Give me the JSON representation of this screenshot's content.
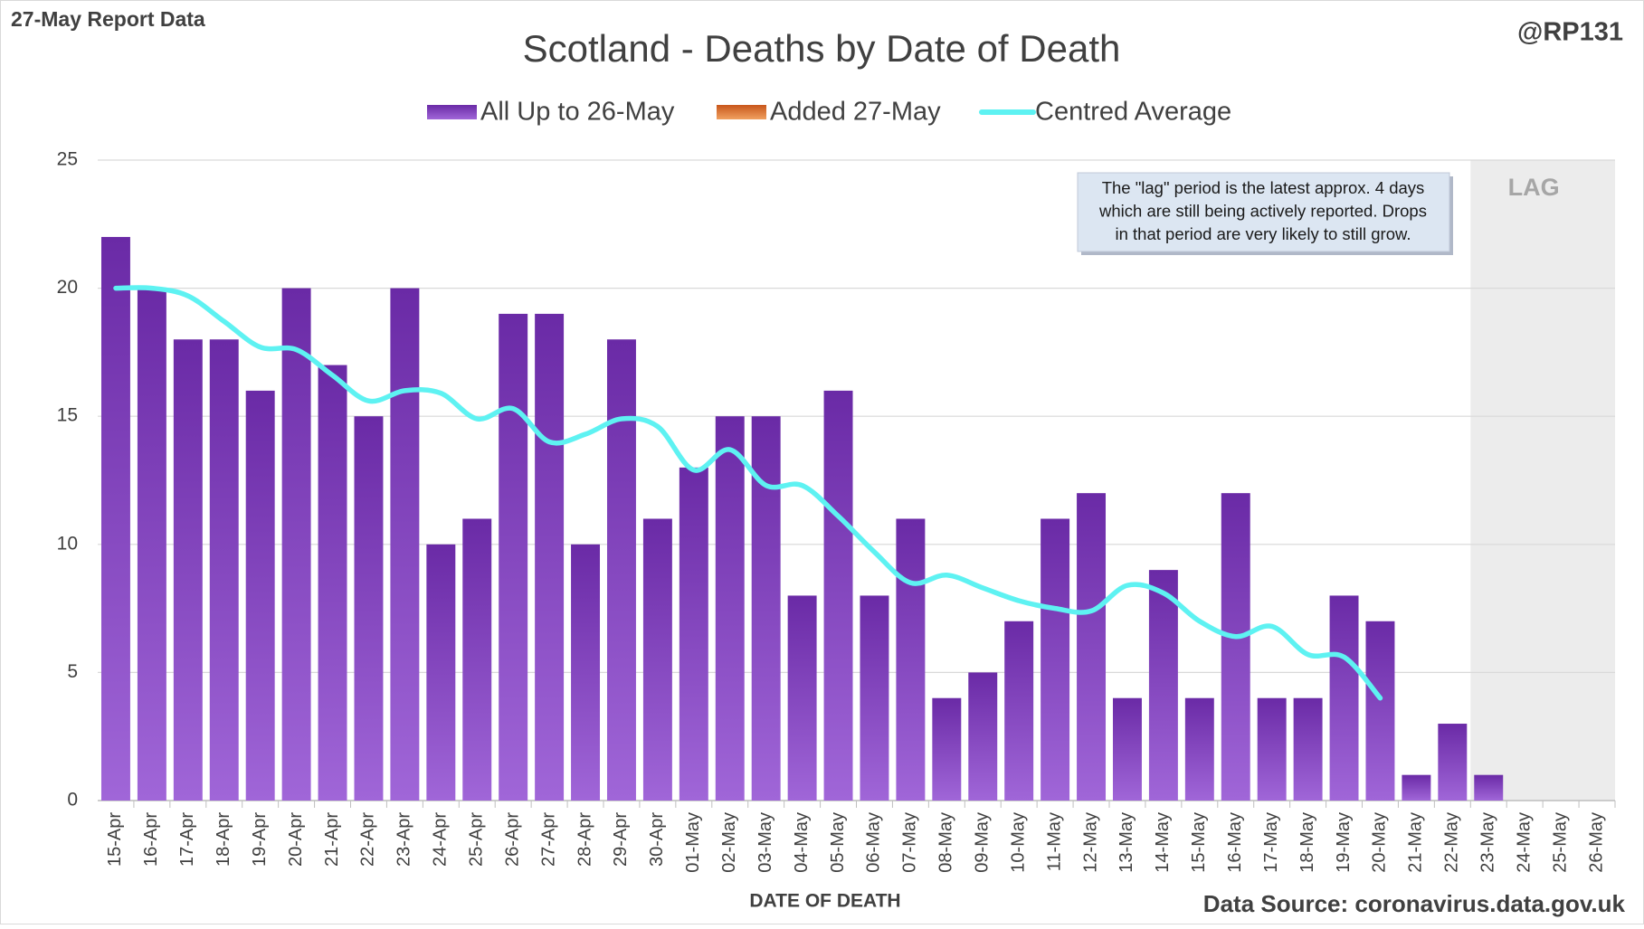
{
  "chart_data": {
    "type": "bar",
    "corner_left": "27-May Report Data",
    "corner_right": "@RP131",
    "title": "Scotland - Deaths by Date of Death",
    "x_label": "DATE OF DEATH",
    "source": "Data Source: coronavirus.data.gov.uk",
    "lag_label": "LAG",
    "annotation": [
      "The \"lag\" period is the latest approx. 4 days",
      "which are still being actively reported.  Drops",
      "in that period are very likely to still grow."
    ],
    "categories": [
      "15-Apr",
      "16-Apr",
      "17-Apr",
      "18-Apr",
      "19-Apr",
      "20-Apr",
      "21-Apr",
      "22-Apr",
      "23-Apr",
      "24-Apr",
      "25-Apr",
      "26-Apr",
      "27-Apr",
      "28-Apr",
      "29-Apr",
      "30-Apr",
      "01-May",
      "02-May",
      "03-May",
      "04-May",
      "05-May",
      "06-May",
      "07-May",
      "08-May",
      "09-May",
      "10-May",
      "11-May",
      "12-May",
      "13-May",
      "14-May",
      "15-May",
      "16-May",
      "17-May",
      "18-May",
      "19-May",
      "20-May",
      "21-May",
      "22-May",
      "23-May",
      "24-May",
      "25-May",
      "26-May"
    ],
    "series": [
      {
        "name": "All Up to 26-May",
        "color": "#7a35b8",
        "values": [
          22,
          20,
          18,
          18,
          16,
          20,
          17,
          15,
          20,
          10,
          11,
          19,
          19,
          10,
          18,
          11,
          13,
          15,
          15,
          8,
          16,
          8,
          11,
          4,
          5,
          7,
          11,
          12,
          4,
          9,
          4,
          12,
          4,
          4,
          8,
          7,
          1,
          3,
          1,
          0,
          0,
          0
        ]
      },
      {
        "name": "Added 27-May",
        "color": "#e07a2a",
        "values": [
          0,
          0,
          0,
          0,
          0,
          0,
          0,
          0,
          0,
          0,
          0,
          0,
          0,
          0,
          0,
          0,
          0,
          0,
          0,
          0,
          0,
          0,
          0,
          0,
          0,
          0,
          0,
          0,
          0,
          0,
          0,
          0,
          0,
          0,
          0,
          0,
          0,
          0,
          0,
          0,
          0,
          0
        ]
      },
      {
        "name": "Centred Average",
        "type": "line",
        "color": "#5ef2f2",
        "values": [
          20,
          20,
          19.7,
          18.7,
          17.7,
          17.6,
          16.6,
          15.6,
          16,
          15.9,
          14.9,
          15.3,
          14,
          14.3,
          14.9,
          14.6,
          12.9,
          13.7,
          12.3,
          12.3,
          11.1,
          9.7,
          8.5,
          8.8,
          8.3,
          7.8,
          7.5,
          7.4,
          8.4,
          8.1,
          7.0,
          6.4,
          6.8,
          5.7,
          5.6,
          4,
          null,
          null,
          null,
          null,
          null,
          null
        ]
      }
    ],
    "ylim": [
      0,
      25
    ],
    "yticks": [
      0,
      5,
      10,
      15,
      20,
      25
    ],
    "grid": true
  }
}
